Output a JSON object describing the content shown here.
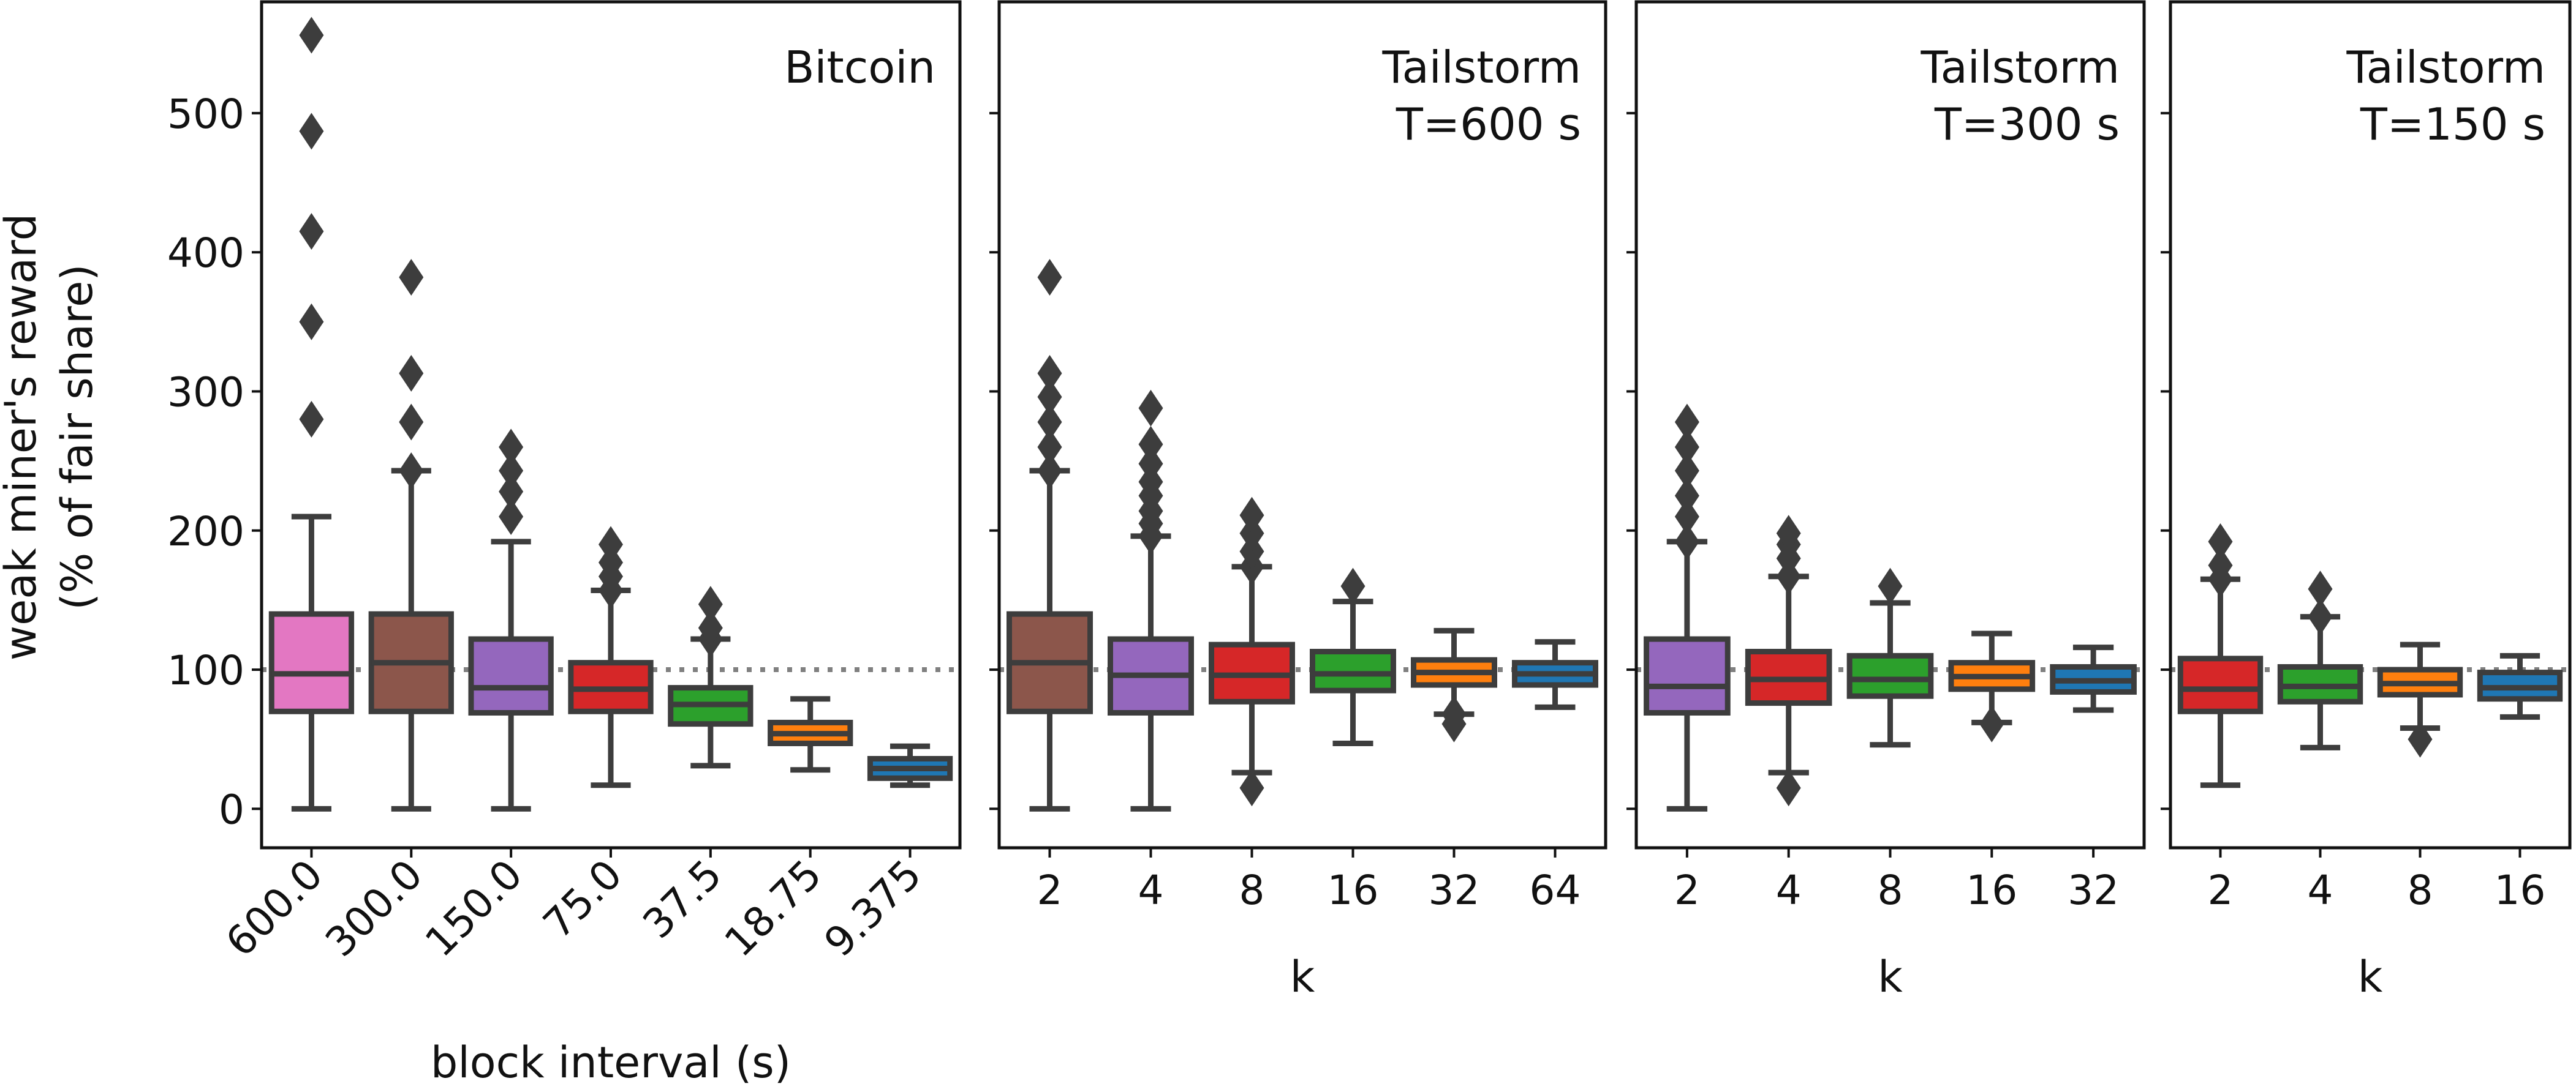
{
  "ylabel_lines": [
    "weak miner's reward",
    "(% of fair share)"
  ],
  "reference_line": 100,
  "chart_data": [
    {
      "type": "box",
      "title_lines": [
        "Bitcoin"
      ],
      "xlabel": "block interval (s)",
      "tick_rotation": -45,
      "ylim": [
        -28,
        580
      ],
      "yticks": [
        0,
        100,
        200,
        300,
        400,
        500
      ],
      "categories": [
        "600.0",
        "300.0",
        "150.0",
        "75.0",
        "37.5",
        "18.75",
        "9.375"
      ],
      "boxes": [
        {
          "q1": 70,
          "median": 97,
          "q3": 140,
          "whisker_low": 0,
          "whisker_high": 210,
          "outliers": [
            280,
            350,
            415,
            487,
            556
          ],
          "color": "#e377c2"
        },
        {
          "q1": 70,
          "median": 105,
          "q3": 140,
          "whisker_low": 0,
          "whisker_high": 243,
          "outliers": [
            243,
            278,
            313,
            382
          ],
          "color": "#8c564b"
        },
        {
          "q1": 69,
          "median": 87,
          "q3": 122,
          "whisker_low": 0,
          "whisker_high": 192,
          "outliers": [
            210,
            228,
            243,
            260
          ],
          "color": "#9467bd"
        },
        {
          "q1": 70,
          "median": 86,
          "q3": 105,
          "whisker_low": 17,
          "whisker_high": 157,
          "outliers": [
            157,
            167,
            177,
            190
          ],
          "color": "#d62728"
        },
        {
          "q1": 61,
          "median": 75,
          "q3": 87,
          "whisker_low": 31,
          "whisker_high": 122,
          "outliers": [
            122,
            130,
            147
          ],
          "color": "#2ca02c"
        },
        {
          "q1": 47,
          "median": 54,
          "q3": 62,
          "whisker_low": 28,
          "whisker_high": 79,
          "outliers": [],
          "color": "#ff7f0e"
        },
        {
          "q1": 22,
          "median": 29,
          "q3": 36,
          "whisker_low": 17,
          "whisker_high": 45,
          "outliers": [],
          "color": "#1f77b4"
        }
      ]
    },
    {
      "type": "box",
      "title_lines": [
        "Tailstorm",
        "T=600 s"
      ],
      "xlabel": "k",
      "tick_rotation": 0,
      "ylim": [
        -28,
        580
      ],
      "yticks": [
        0,
        100,
        200,
        300,
        400,
        500
      ],
      "categories": [
        "2",
        "4",
        "8",
        "16",
        "32",
        "64"
      ],
      "boxes": [
        {
          "q1": 70,
          "median": 105,
          "q3": 140,
          "whisker_low": 0,
          "whisker_high": 243,
          "outliers": [
            243,
            260,
            278,
            296,
            313,
            382
          ],
          "color": "#8c564b"
        },
        {
          "q1": 69,
          "median": 96,
          "q3": 122,
          "whisker_low": 0,
          "whisker_high": 196,
          "outliers": [
            196,
            205,
            214,
            225,
            235,
            248,
            262,
            288
          ],
          "color": "#9467bd"
        },
        {
          "q1": 77,
          "median": 96,
          "q3": 118,
          "whisker_low": 26,
          "whisker_high": 174,
          "outliers": [
            15,
            174,
            185,
            198,
            211
          ],
          "color": "#d62728"
        },
        {
          "q1": 85,
          "median": 97,
          "q3": 113,
          "whisker_low": 47,
          "whisker_high": 149,
          "outliers": [
            160
          ],
          "color": "#2ca02c"
        },
        {
          "q1": 89,
          "median": 98,
          "q3": 107,
          "whisker_low": 68,
          "whisker_high": 128,
          "outliers": [
            61,
            68
          ],
          "color": "#ff7f0e"
        },
        {
          "q1": 89,
          "median": 97,
          "q3": 105,
          "whisker_low": 73,
          "whisker_high": 120,
          "outliers": [],
          "color": "#1f77b4"
        }
      ]
    },
    {
      "type": "box",
      "title_lines": [
        "Tailstorm",
        "T=300 s"
      ],
      "xlabel": "k",
      "tick_rotation": 0,
      "ylim": [
        -28,
        580
      ],
      "yticks": [
        0,
        100,
        200,
        300,
        400,
        500
      ],
      "categories": [
        "2",
        "4",
        "8",
        "16",
        "32"
      ],
      "boxes": [
        {
          "q1": 69,
          "median": 88,
          "q3": 122,
          "whisker_low": 0,
          "whisker_high": 192,
          "outliers": [
            192,
            210,
            225,
            243,
            260,
            278
          ],
          "color": "#9467bd"
        },
        {
          "q1": 76,
          "median": 93,
          "q3": 113,
          "whisker_low": 26,
          "whisker_high": 167,
          "outliers": [
            15,
            167,
            180,
            190,
            198
          ],
          "color": "#d62728"
        },
        {
          "q1": 81,
          "median": 93,
          "q3": 110,
          "whisker_low": 46,
          "whisker_high": 148,
          "outliers": [
            160
          ],
          "color": "#2ca02c"
        },
        {
          "q1": 86,
          "median": 95,
          "q3": 105,
          "whisker_low": 62,
          "whisker_high": 126,
          "outliers": [
            61
          ],
          "color": "#ff7f0e"
        },
        {
          "q1": 84,
          "median": 92,
          "q3": 102,
          "whisker_low": 71,
          "whisker_high": 116,
          "outliers": [],
          "color": "#1f77b4"
        }
      ]
    },
    {
      "type": "box",
      "title_lines": [
        "Tailstorm",
        "T=150 s"
      ],
      "xlabel": "k",
      "tick_rotation": 0,
      "ylim": [
        -28,
        580
      ],
      "yticks": [
        0,
        100,
        200,
        300,
        400,
        500
      ],
      "categories": [
        "2",
        "4",
        "8",
        "16"
      ],
      "boxes": [
        {
          "q1": 70,
          "median": 86,
          "q3": 108,
          "whisker_low": 17,
          "whisker_high": 165,
          "outliers": [
            165,
            175,
            192
          ],
          "color": "#d62728"
        },
        {
          "q1": 77,
          "median": 88,
          "q3": 102,
          "whisker_low": 44,
          "whisker_high": 138,
          "outliers": [
            138,
            158
          ],
          "color": "#2ca02c"
        },
        {
          "q1": 82,
          "median": 90,
          "q3": 100,
          "whisker_low": 58,
          "whisker_high": 118,
          "outliers": [
            50
          ],
          "color": "#ff7f0e"
        },
        {
          "q1": 79,
          "median": 87,
          "q3": 98,
          "whisker_low": 66,
          "whisker_high": 110,
          "outliers": [],
          "color": "#1f77b4"
        }
      ]
    }
  ]
}
